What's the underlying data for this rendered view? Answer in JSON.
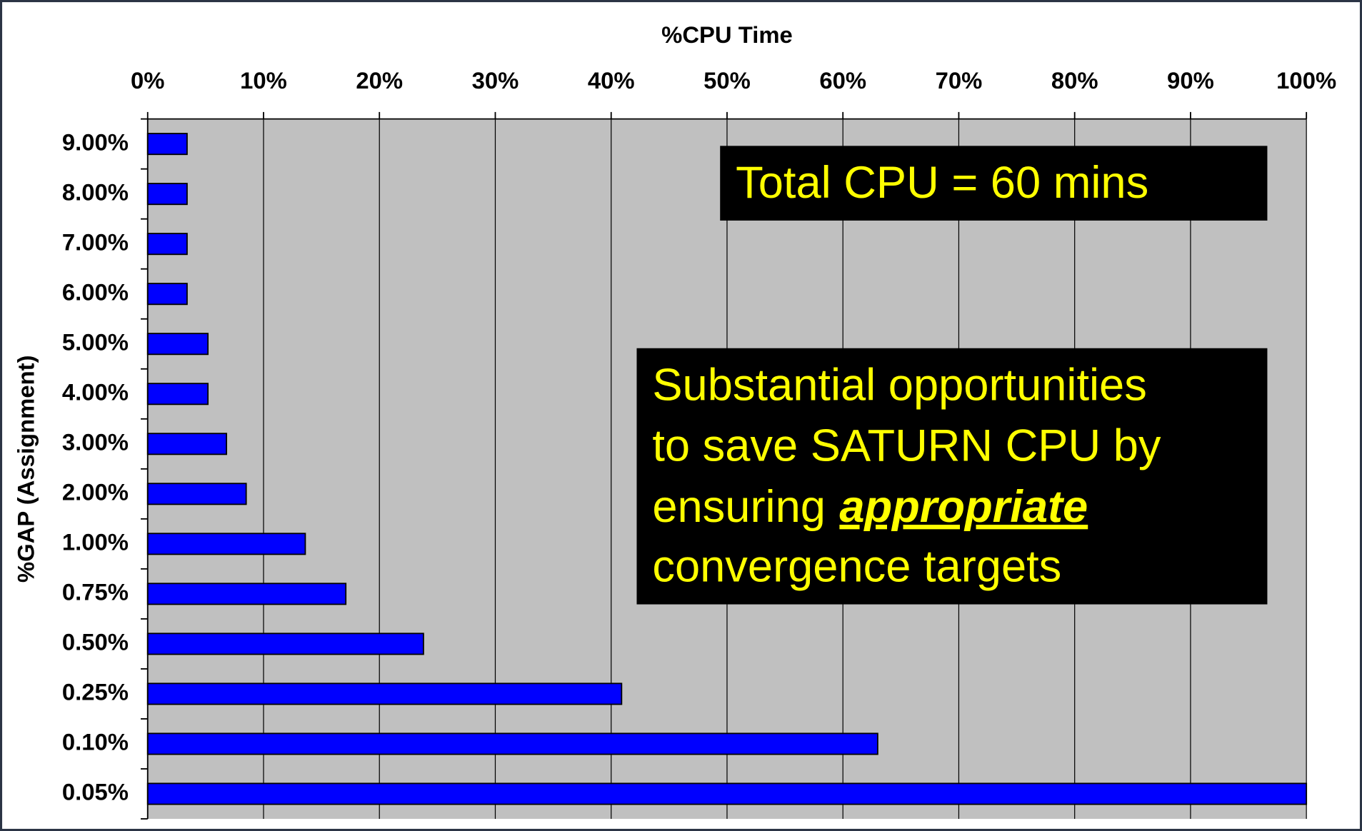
{
  "chart_data": {
    "type": "bar",
    "orientation": "horizontal",
    "title": "%CPU Time",
    "y_label": "%GAP (Assignment)",
    "categories": [
      "9.00%",
      "8.00%",
      "7.00%",
      "6.00%",
      "5.00%",
      "4.00%",
      "3.00%",
      "2.00%",
      "1.00%",
      "0.75%",
      "0.50%",
      "0.25%",
      "0.10%",
      "0.05%"
    ],
    "values": [
      3.4,
      3.4,
      3.4,
      3.4,
      5.2,
      5.2,
      6.8,
      8.5,
      13.6,
      17.1,
      23.8,
      40.9,
      63.0,
      100
    ],
    "color": "#0000ff",
    "xlim": [
      0,
      100
    ],
    "xticks": [
      {
        "value": 0,
        "label": "0%"
      },
      {
        "value": 10,
        "label": "10%"
      },
      {
        "value": 20,
        "label": "20%"
      },
      {
        "value": 30,
        "label": "30%"
      },
      {
        "value": 40,
        "label": "40%"
      },
      {
        "value": 50,
        "label": "50%"
      },
      {
        "value": 60,
        "label": "60%"
      },
      {
        "value": 70,
        "label": "70%"
      },
      {
        "value": 80,
        "label": "80%"
      },
      {
        "value": 90,
        "label": "90%"
      },
      {
        "value": 100,
        "label": "100%"
      }
    ],
    "grid": true,
    "annotations": [
      {
        "text": "Total CPU = 60 mins"
      },
      {
        "lines": [
          "Substantial opportunities",
          "to save SATURN CPU by",
          "ensuring",
          "appropriate",
          "convergence targets"
        ]
      }
    ]
  }
}
